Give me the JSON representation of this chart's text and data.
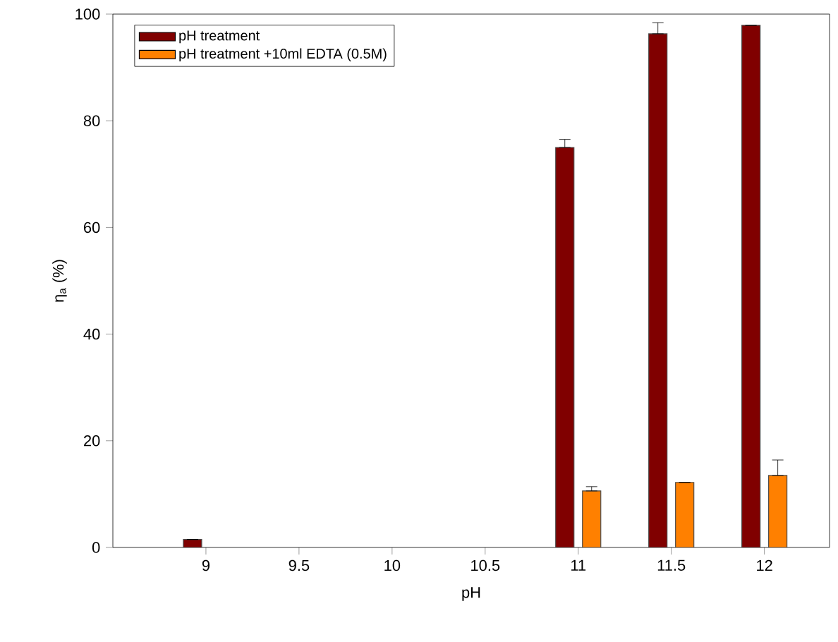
{
  "chart_data": {
    "type": "bar",
    "xlabel": "pH",
    "ylabel": "η$_{a}$ (%)",
    "categories": [
      "9",
      "9.5",
      "10",
      "10.5",
      "11",
      "11.5",
      "12"
    ],
    "series": [
      {
        "name": "pH treatment",
        "color": "#800000",
        "values": [
          1.5,
          null,
          null,
          null,
          75,
          96.3,
          97.9
        ],
        "errors": [
          null,
          null,
          null,
          null,
          [
            75,
            76.5
          ],
          [
            96.3,
            98.4
          ],
          null
        ]
      },
      {
        "name": "pH treatment +10ml EDTA (0.5M)",
        "color": "#ff8000",
        "values": [
          null,
          null,
          null,
          null,
          10.6,
          12.2,
          13.5
        ],
        "errors": [
          null,
          null,
          null,
          null,
          [
            10.6,
            11.4
          ],
          null,
          [
            13.5,
            16.4
          ]
        ]
      }
    ],
    "ylim": [
      0,
      100
    ],
    "yticks": [
      0,
      20,
      40,
      60,
      80,
      100
    ],
    "legend": "top left",
    "grid": false
  }
}
